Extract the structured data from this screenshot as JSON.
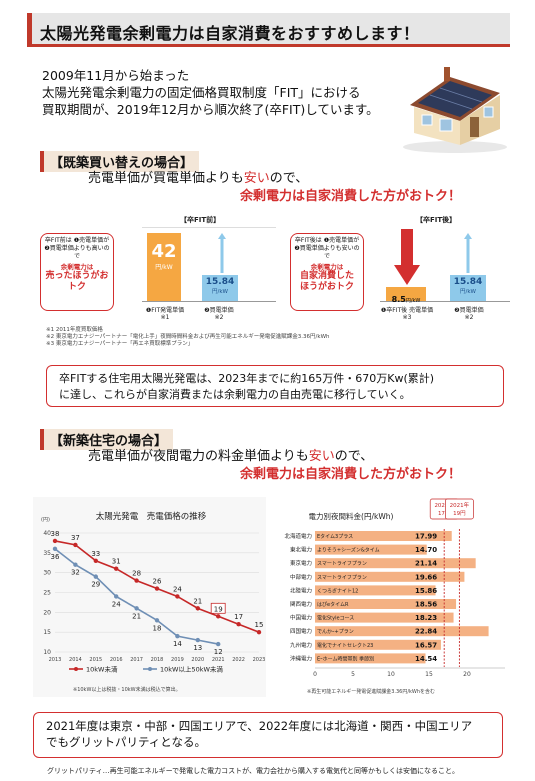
{
  "title": "太陽光発電余剰電力は自家消費をおすすめします！",
  "intro": {
    "line1": "2009年11月から始まった",
    "line2": "太陽光発電余剰電力の固定価格買取制度「FIT」における",
    "line3": "買取期間が、2019年12月から順次終了(卒FIT)しています。"
  },
  "section1": {
    "heading": "【既築買い替えの場合】",
    "line1_a": "売電単価が買電単価よりも",
    "line1_red": "安い",
    "line1_b": "ので、",
    "line2": "余剰電力は自家消費した方がおトク！"
  },
  "comparison": {
    "before": {
      "title": "【卒FIT前】",
      "callout_small": "卒FIT前は ❶売電単価が❷買電単価よりも高いので",
      "callout_mid": "余剰電力は",
      "callout_big": "売ったほうがおトク",
      "bar1_value": "42",
      "bar1_unit": "円/kW",
      "bar2_value": "15.84",
      "bar2_unit": "円/kW",
      "label1": "❶FIT発電単価",
      "label1_note": "※1",
      "label2": "❷買電単価",
      "label2_note": "※2"
    },
    "after": {
      "title": "【卒FIT後】",
      "callout_small": "卒FIT後は ❶売電単価が❷買電単価よりも安いので",
      "callout_mid": "余剰電力は",
      "callout_big": "自家消費した ほうがおトク",
      "bar1_value": "8.5",
      "bar1_unit": "円/kW",
      "bar2_value": "15.84",
      "bar2_unit": "円/kW",
      "label1": "❶卒FIT後 売電単価",
      "label1_note": "※3",
      "label2": "❷買電単価",
      "label2_note": "※2"
    },
    "notes": [
      "※1 2011年度買取価格",
      "※2 東京電力エナジーパートナー「電化上手」夜間時間料金および再生可能エネルギー発電促進賦課金3.36円/kWh",
      "※3 東京電力エナジーパートナー「再エネ買取標準プラン」"
    ]
  },
  "notice": {
    "line1": "卒FITする住宅用太陽光発電は、2023年までに約165万件・670万Kw(累計)",
    "line2": "に達し、これらが自家消費または余剰電力の自由売電に移行していく。"
  },
  "section2": {
    "heading": "【新築住宅の場合】",
    "line1_a": "売電単価が夜間電力の料金単価よりも",
    "line1_red": "安い",
    "line1_b": "ので、",
    "line2": "余剰電力は自家消費した方がおトク！"
  },
  "chart_data": [
    {
      "type": "line",
      "title": "太陽光発電　売電価格の推移",
      "yunit": "(円)",
      "x": [
        "2013",
        "2014",
        "2015",
        "2016",
        "2017",
        "2018",
        "2019",
        "2020",
        "2021",
        "2022",
        "2023"
      ],
      "ylim": [
        10,
        40
      ],
      "yticks": [
        10,
        15,
        20,
        25,
        30,
        35,
        40
      ],
      "series": [
        {
          "name": "10kW未満",
          "color": "#c62828",
          "values": [
            38,
            37,
            33,
            31,
            28,
            26,
            24,
            21,
            19,
            17,
            15
          ]
        },
        {
          "name": "10kW以上50kW未満",
          "color": "#6f8fb5",
          "values": [
            36,
            32,
            29,
            24,
            21,
            18,
            14,
            13,
            12,
            null,
            null
          ]
        }
      ],
      "highlight_index": 8,
      "footnote": "※10kW以上は税抜・10kW未満は税込で算出。"
    },
    {
      "type": "bar",
      "orientation": "horizontal",
      "title": "電力別夜間料金(円/kWh)",
      "xlim": [
        0,
        25
      ],
      "xticks": [
        0,
        5,
        10,
        15,
        20
      ],
      "categories": [
        "北海道電力",
        "東北電力",
        "東京電力",
        "中部電力",
        "北陸電力",
        "関西電力",
        "中国電力",
        "四国電力",
        "九州電力",
        "沖縄電力"
      ],
      "plans": [
        "Eタイム3プラス",
        "よりそう+シーズン&タイム",
        "スマートライフプラン",
        "スマートライフプラン",
        "くつろぎナイト12",
        "はぴeタイムR",
        "電化Styleコース",
        "でんかｰ+プラン",
        "電化でナイトセレクト23",
        "Eｰホーム時間帯別 季節別"
      ],
      "values": [
        17.99,
        14.7,
        21.14,
        19.66,
        15.86,
        18.56,
        18.23,
        22.84,
        16.57,
        14.54
      ],
      "value_labels": [
        "17.99",
        "14.70",
        "21.14",
        "19.66",
        "15.86",
        "18.56",
        "18.23",
        "22.84",
        "16.57",
        "14.54"
      ],
      "markers": [
        {
          "label": "2022年 17円",
          "value": 17
        },
        {
          "label": "2021年 19円",
          "value": 19
        }
      ],
      "bar_color": "#f4b183",
      "footnote": "※再生可能エネルギー発電促進賦課金3.36円/kWhを含む"
    }
  ],
  "bottom": {
    "line1": "2021年度は東京・中部・四国エリアで、2022年度には北海道・関西・中国エリア",
    "line2": "でもグリットパリティとなる。"
  },
  "footer": "グリットパリティ…再生可能エネルギーで発電した電力コストが、電力会社から購入する電気代と同等かもしくは安価になること。",
  "colors": {
    "accent_red": "#d32f2f",
    "orange": "#f5a742",
    "blue_bar": "#8ec9ea"
  }
}
